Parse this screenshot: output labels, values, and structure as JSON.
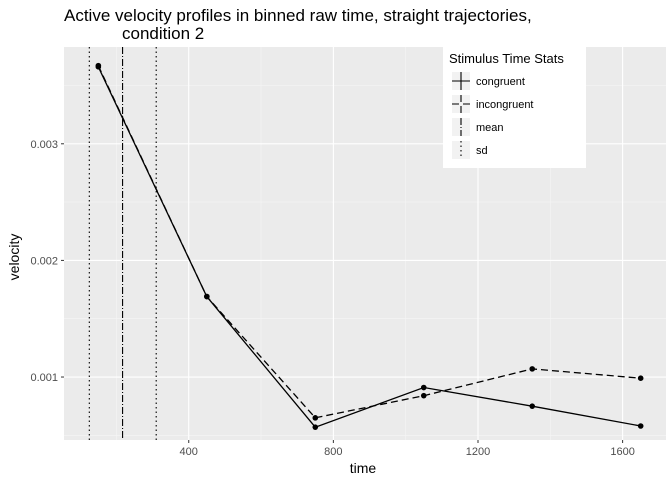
{
  "chart_data": {
    "type": "line",
    "title": "Active velocity profiles in binned raw time, straight trajectories,",
    "subtitle": "condition 2",
    "xlabel": "time",
    "ylabel": "velocity",
    "xlim": [
      55,
      1720
    ],
    "ylim": [
      0.00046,
      0.00383
    ],
    "x_ticks": [
      400,
      800,
      1200,
      1600
    ],
    "x_tick_labels": [
      "400",
      "800",
      "1200",
      "1600"
    ],
    "y_ticks": [
      0.001,
      0.002,
      0.003
    ],
    "y_tick_labels": [
      "0.001",
      "0.002",
      "0.003"
    ],
    "grid": true,
    "legend_position": "top-right",
    "legend": {
      "title": "Stimulus Time Stats",
      "entries": [
        "congruent",
        "incongruent",
        "mean",
        "sd"
      ]
    },
    "series": [
      {
        "name": "congruent",
        "linestyle": "solid",
        "x": [
          150,
          450,
          750,
          1050,
          1350,
          1650
        ],
        "y": [
          0.00366,
          0.00169,
          0.00057,
          0.00091,
          0.00075,
          0.00058
        ]
      },
      {
        "name": "incongruent",
        "linestyle": "dashed",
        "x": [
          150,
          450,
          750,
          1050,
          1350,
          1650
        ],
        "y": [
          0.00367,
          0.00169,
          0.00065,
          0.00084,
          0.00107,
          0.00099
        ]
      }
    ],
    "vertical_lines": [
      {
        "name": "mean",
        "linestyle": "dotdash",
        "x": 217
      },
      {
        "name": "sd",
        "linestyle": "dotted",
        "x": 125
      },
      {
        "name": "sd",
        "linestyle": "dotted",
        "x": 310
      }
    ],
    "colors": {
      "panel_background": "#ebebeb",
      "grid_major": "#ffffff",
      "line": "#000000"
    }
  }
}
